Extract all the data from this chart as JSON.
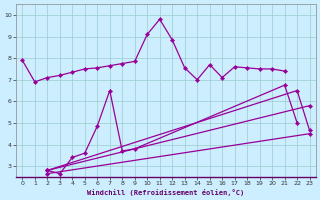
{
  "xlabel": "Windchill (Refroidissement éolien,°C)",
  "bg_color": "#cceeff",
  "line_color": "#990099",
  "grid_color": "#99cccc",
  "xlim": [
    -0.5,
    23.5
  ],
  "ylim": [
    2.5,
    10.5
  ],
  "xticks": [
    0,
    1,
    2,
    3,
    4,
    5,
    6,
    7,
    8,
    9,
    10,
    11,
    12,
    13,
    14,
    15,
    16,
    17,
    18,
    19,
    20,
    21,
    22,
    23
  ],
  "yticks": [
    3,
    4,
    5,
    6,
    7,
    8,
    9,
    10
  ],
  "series": [
    {
      "x": [
        0,
        1,
        2,
        3,
        4,
        5,
        6,
        7,
        8,
        9,
        10,
        11,
        12,
        13,
        14,
        15,
        16,
        17,
        18,
        19,
        20,
        21
      ],
      "y": [
        7.9,
        6.9,
        7.1,
        7.2,
        7.35,
        7.5,
        7.55,
        7.65,
        7.75,
        7.85,
        9.1,
        9.8,
        8.85,
        7.55,
        7.0,
        7.7,
        7.1,
        7.6,
        7.55,
        7.5,
        7.5,
        7.4
      ]
    },
    {
      "x": [
        2,
        3,
        4,
        5,
        6,
        7,
        8,
        9,
        21,
        22
      ],
      "y": [
        2.8,
        2.65,
        3.4,
        3.6,
        4.85,
        6.5,
        3.7,
        3.8,
        6.75,
        5.0
      ]
    },
    {
      "x": [
        2,
        22,
        23
      ],
      "y": [
        2.8,
        6.5,
        4.65
      ]
    },
    {
      "comment": "middle diagonal: from (2,2.8) to (23,5.8)",
      "x": [
        2,
        23
      ],
      "y": [
        2.8,
        5.8
      ]
    },
    {
      "x": [
        2,
        23
      ],
      "y": [
        2.65,
        4.5
      ]
    }
  ]
}
